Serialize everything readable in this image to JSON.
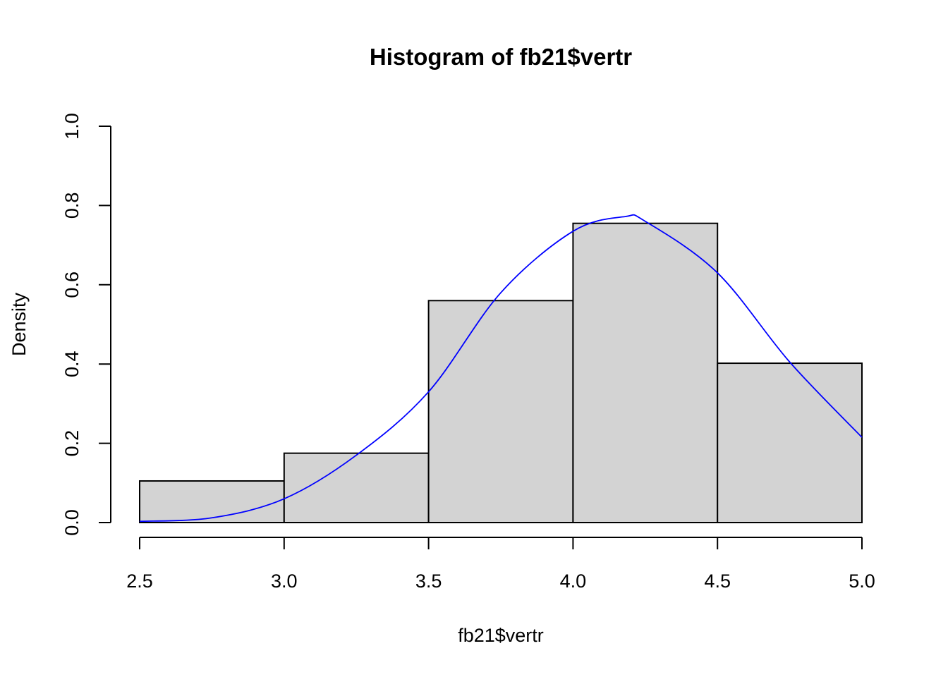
{
  "chart_data": {
    "type": "bar",
    "title": "Histogram of fb21$vertr",
    "xlabel": "fb21$vertr",
    "ylabel": "Density",
    "xlim": [
      2.5,
      5.0
    ],
    "ylim": [
      0,
      1.0
    ],
    "x_ticks": [
      "2.5",
      "3.0",
      "3.5",
      "4.0",
      "4.5",
      "5.0"
    ],
    "y_ticks": [
      "0.0",
      "0.2",
      "0.4",
      "0.6",
      "0.8",
      "1.0"
    ],
    "grid": false,
    "bins": [
      {
        "from": 2.5,
        "to": 3.0,
        "density": 0.105
      },
      {
        "from": 3.0,
        "to": 3.5,
        "density": 0.175
      },
      {
        "from": 3.5,
        "to": 4.0,
        "density": 0.56
      },
      {
        "from": 4.0,
        "to": 4.5,
        "density": 0.755
      },
      {
        "from": 4.5,
        "to": 5.0,
        "density": 0.402
      }
    ],
    "density_curve": {
      "type": "line",
      "color": "#0000ff",
      "x": [
        2.5,
        2.75,
        3.0,
        3.25,
        3.5,
        3.75,
        4.0,
        4.18,
        4.25,
        4.5,
        4.75,
        5.0
      ],
      "y": [
        0.003,
        0.012,
        0.06,
        0.17,
        0.33,
        0.58,
        0.735,
        0.772,
        0.76,
        0.63,
        0.405,
        0.215
      ]
    },
    "bar_fill": "#d3d3d3",
    "bar_stroke": "#000000"
  }
}
